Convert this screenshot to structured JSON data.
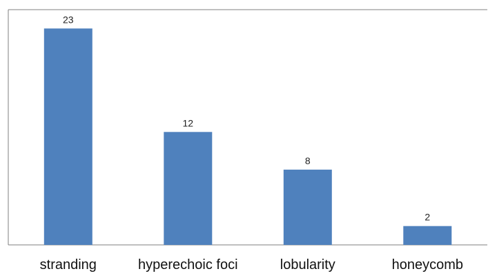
{
  "chart_data": {
    "type": "bar",
    "categories": [
      "stranding",
      "hyperechoic foci",
      "lobularity",
      "honeycomb"
    ],
    "values": [
      23,
      12,
      8,
      2
    ],
    "data_labels": [
      "23",
      "12",
      "8",
      "2"
    ],
    "title": "",
    "xlabel": "",
    "ylabel": "",
    "ylim": [
      0,
      25
    ],
    "grid": false,
    "legend": "none",
    "bar_color": "#4f81bd",
    "axis_color": "#7f7f7f"
  }
}
